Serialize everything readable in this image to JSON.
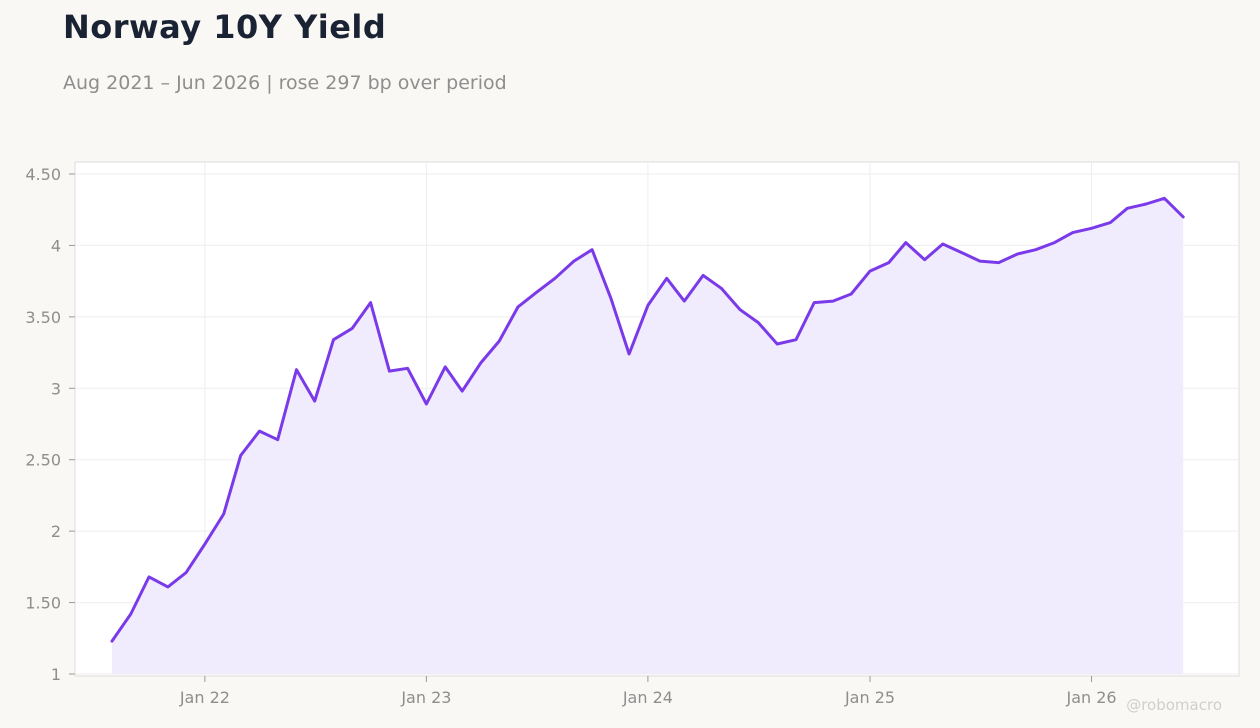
{
  "header": {
    "title": "Norway 10Y Yield",
    "subtitle": "Aug 2021 – Jun 2026 | rose 297 bp over period"
  },
  "watermark": "@robomacro",
  "colors": {
    "line": "#7b3aea",
    "fill": "#f1ecfd",
    "background": "#f9f8f5",
    "plot_background": "#ffffff",
    "grid": "#eeeeee",
    "text": "#8e8e8e"
  },
  "chart_data": {
    "type": "area",
    "title": "Norway 10Y Yield",
    "subtitle": "Aug 2021 – Jun 2026 | rose 297 bp over period",
    "xlabel": "",
    "ylabel": "",
    "ylim": [
      1,
      4.5
    ],
    "xlim": [
      "2021-06-01",
      "2026-09-01"
    ],
    "grid": true,
    "legend": "none",
    "yticks": [
      {
        "value": 1,
        "label": "1"
      },
      {
        "value": 1.5,
        "label": "1.50"
      },
      {
        "value": 2,
        "label": "2"
      },
      {
        "value": 2.5,
        "label": "2.50"
      },
      {
        "value": 3,
        "label": "3"
      },
      {
        "value": 3.5,
        "label": "3.50"
      },
      {
        "value": 4,
        "label": "4"
      },
      {
        "value": 4.5,
        "label": "4.50"
      }
    ],
    "xticks": [
      {
        "value": "2022-01-01",
        "label": "Jan 22"
      },
      {
        "value": "2023-01-01",
        "label": "Jan 23"
      },
      {
        "value": "2024-01-01",
        "label": "Jan 24"
      },
      {
        "value": "2025-01-01",
        "label": "Jan 25"
      },
      {
        "value": "2026-01-01",
        "label": "Jan 26"
      }
    ],
    "x": [
      "2021-08-01",
      "2021-09-01",
      "2021-10-01",
      "2021-11-01",
      "2021-12-01",
      "2022-01-01",
      "2022-02-01",
      "2022-03-01",
      "2022-04-01",
      "2022-05-01",
      "2022-06-01",
      "2022-07-01",
      "2022-08-01",
      "2022-09-01",
      "2022-10-01",
      "2022-11-01",
      "2022-12-01",
      "2023-01-01",
      "2023-02-01",
      "2023-03-01",
      "2023-04-01",
      "2023-05-01",
      "2023-06-01",
      "2023-07-01",
      "2023-08-01",
      "2023-09-01",
      "2023-10-01",
      "2023-11-01",
      "2023-12-01",
      "2024-01-01",
      "2024-02-01",
      "2024-03-01",
      "2024-04-01",
      "2024-05-01",
      "2024-06-01",
      "2024-07-01",
      "2024-08-01",
      "2024-09-01",
      "2024-10-01",
      "2024-11-01",
      "2024-12-01",
      "2025-01-01",
      "2025-02-01",
      "2025-03-01",
      "2025-04-01",
      "2025-05-01",
      "2025-06-01",
      "2025-07-01",
      "2025-08-01",
      "2025-09-01",
      "2025-10-01",
      "2025-11-01",
      "2025-12-01",
      "2026-01-01",
      "2026-02-01",
      "2026-03-01",
      "2026-04-01",
      "2026-05-01",
      "2026-06-01"
    ],
    "series": [
      {
        "values": [
          1.23,
          1.42,
          1.68,
          1.61,
          1.71,
          1.91,
          2.12,
          2.53,
          2.7,
          2.64,
          3.13,
          2.91,
          3.34,
          3.42,
          3.6,
          3.12,
          3.14,
          2.89,
          3.15,
          2.98,
          3.18,
          3.33,
          3.57,
          3.67,
          3.77,
          3.89,
          3.97,
          3.63,
          3.24,
          3.58,
          3.77,
          3.61,
          3.79,
          3.7,
          3.55,
          3.46,
          3.31,
          3.34,
          3.6,
          3.61,
          3.66,
          3.82,
          3.88,
          4.02,
          3.9,
          4.01,
          3.95,
          3.89,
          3.88,
          3.94,
          3.97,
          4.02,
          4.09,
          4.12,
          4.16,
          4.26,
          4.29,
          4.33,
          4.2
        ]
      }
    ]
  }
}
